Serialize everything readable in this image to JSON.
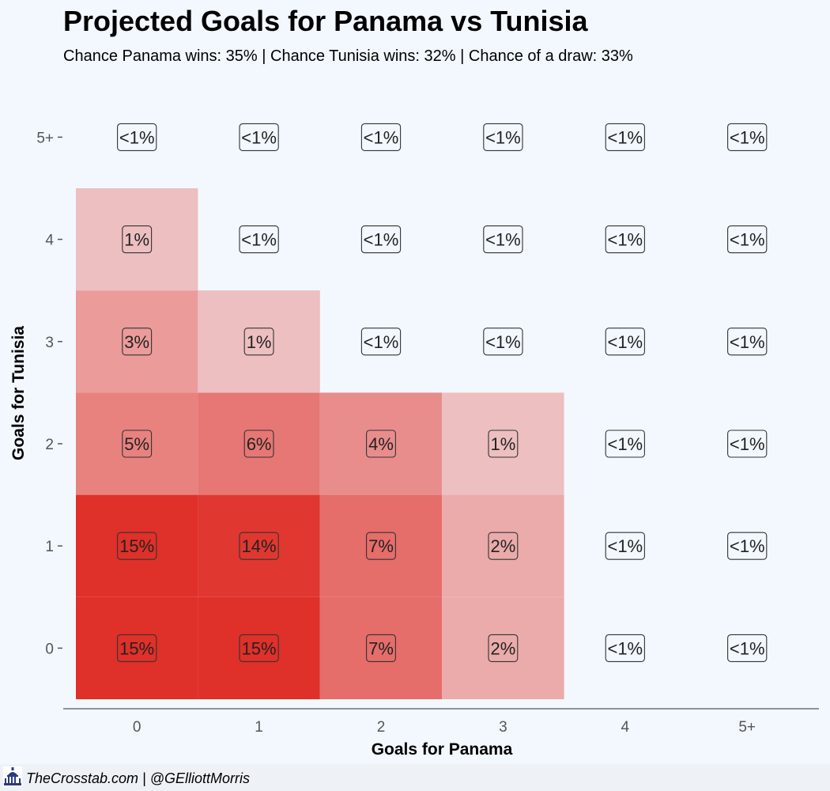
{
  "chart_data": {
    "type": "heatmap",
    "title": "Projected Goals for Panama vs Tunisia",
    "subtitle": "Chance Panama wins: 35% | Chance Tunisia wins: 32% | Chance of a draw: 33%",
    "xlabel": "Goals for Panama",
    "ylabel": "Goals for Tunisia",
    "x_categories": [
      "0",
      "1",
      "2",
      "3",
      "4",
      "5+"
    ],
    "y_categories": [
      "0",
      "1",
      "2",
      "3",
      "4",
      "5+"
    ],
    "cells": [
      {
        "x": "0",
        "y": "0",
        "value": 15,
        "label": "15%"
      },
      {
        "x": "1",
        "y": "0",
        "value": 15,
        "label": "15%"
      },
      {
        "x": "2",
        "y": "0",
        "value": 7,
        "label": "7%"
      },
      {
        "x": "3",
        "y": "0",
        "value": 2,
        "label": "2%"
      },
      {
        "x": "4",
        "y": "0",
        "value": 0,
        "label": "<1%"
      },
      {
        "x": "5+",
        "y": "0",
        "value": 0,
        "label": "<1%"
      },
      {
        "x": "0",
        "y": "1",
        "value": 15,
        "label": "15%"
      },
      {
        "x": "1",
        "y": "1",
        "value": 14,
        "label": "14%"
      },
      {
        "x": "2",
        "y": "1",
        "value": 7,
        "label": "7%"
      },
      {
        "x": "3",
        "y": "1",
        "value": 2,
        "label": "2%"
      },
      {
        "x": "4",
        "y": "1",
        "value": 0,
        "label": "<1%"
      },
      {
        "x": "5+",
        "y": "1",
        "value": 0,
        "label": "<1%"
      },
      {
        "x": "0",
        "y": "2",
        "value": 5,
        "label": "5%"
      },
      {
        "x": "1",
        "y": "2",
        "value": 6,
        "label": "6%"
      },
      {
        "x": "2",
        "y": "2",
        "value": 4,
        "label": "4%"
      },
      {
        "x": "3",
        "y": "2",
        "value": 1,
        "label": "1%"
      },
      {
        "x": "4",
        "y": "2",
        "value": 0,
        "label": "<1%"
      },
      {
        "x": "5+",
        "y": "2",
        "value": 0,
        "label": "<1%"
      },
      {
        "x": "0",
        "y": "3",
        "value": 3,
        "label": "3%"
      },
      {
        "x": "1",
        "y": "3",
        "value": 1,
        "label": "1%"
      },
      {
        "x": "2",
        "y": "3",
        "value": 0,
        "label": "<1%"
      },
      {
        "x": "3",
        "y": "3",
        "value": 0,
        "label": "<1%"
      },
      {
        "x": "4",
        "y": "3",
        "value": 0,
        "label": "<1%"
      },
      {
        "x": "5+",
        "y": "3",
        "value": 0,
        "label": "<1%"
      },
      {
        "x": "0",
        "y": "4",
        "value": 1,
        "label": "1%"
      },
      {
        "x": "1",
        "y": "4",
        "value": 0,
        "label": "<1%"
      },
      {
        "x": "2",
        "y": "4",
        "value": 0,
        "label": "<1%"
      },
      {
        "x": "3",
        "y": "4",
        "value": 0,
        "label": "<1%"
      },
      {
        "x": "4",
        "y": "4",
        "value": 0,
        "label": "<1%"
      },
      {
        "x": "5+",
        "y": "4",
        "value": 0,
        "label": "<1%"
      },
      {
        "x": "0",
        "y": "5+",
        "value": 0,
        "label": "<1%"
      },
      {
        "x": "1",
        "y": "5+",
        "value": 0,
        "label": "<1%"
      },
      {
        "x": "2",
        "y": "5+",
        "value": 0,
        "label": "<1%"
      },
      {
        "x": "3",
        "y": "5+",
        "value": 0,
        "label": "<1%"
      },
      {
        "x": "4",
        "y": "5+",
        "value": 0,
        "label": "<1%"
      },
      {
        "x": "5+",
        "y": "5+",
        "value": 0,
        "label": "<1%"
      }
    ],
    "colors": {
      "background": "#f2f8fe",
      "low": "#f2f1f5",
      "high": "#df3029",
      "text": "#222222",
      "axis": "#555555"
    },
    "legend": "none",
    "grid": false
  },
  "footer": {
    "credit": "TheCrosstab.com | @GElliottMorris",
    "logo_icon": "capitol-building-icon"
  }
}
